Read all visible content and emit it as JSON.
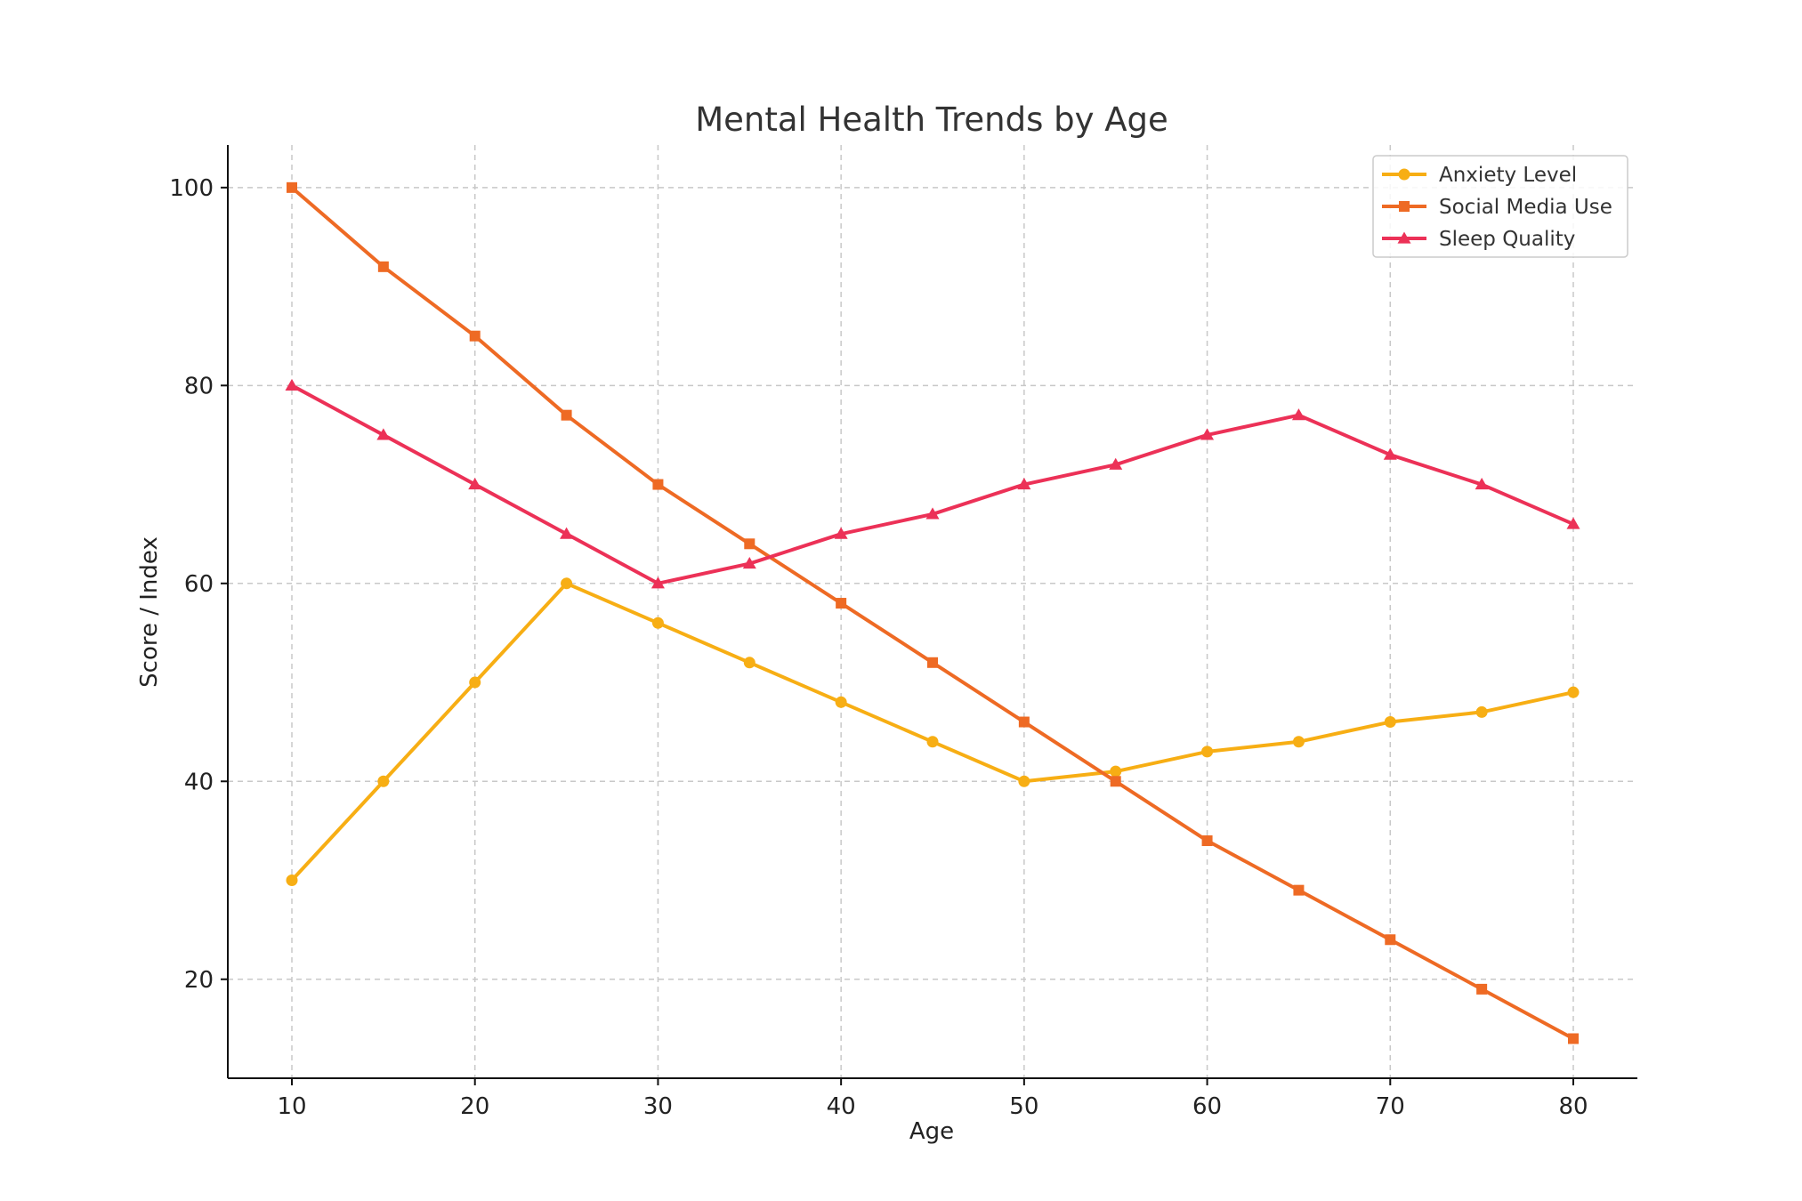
{
  "chart_data": {
    "type": "line",
    "title": "Mental Health Trends by Age",
    "xlabel": "Age",
    "ylabel": "Score / Index",
    "x": [
      10,
      15,
      20,
      25,
      30,
      35,
      40,
      45,
      50,
      55,
      60,
      65,
      70,
      75,
      80
    ],
    "xlim": [
      6.5,
      83.5
    ],
    "ylim": [
      10,
      104.3
    ],
    "xticks": [
      10,
      20,
      30,
      40,
      50,
      60,
      70,
      80
    ],
    "yticks": [
      20,
      40,
      60,
      80,
      100
    ],
    "grid": true,
    "legend_position": "top-right",
    "series": [
      {
        "name": "Anxiety Level",
        "color": "#F7AE14",
        "marker": "circle",
        "values": [
          30,
          40,
          50,
          60,
          56,
          52,
          48,
          44,
          40,
          41,
          43,
          44,
          46,
          47,
          49
        ]
      },
      {
        "name": "Social Media Use",
        "color": "#EE6A24",
        "marker": "square",
        "values": [
          100,
          92,
          85,
          77,
          70,
          64,
          58,
          52,
          46,
          40,
          34,
          29,
          24,
          19,
          14
        ]
      },
      {
        "name": "Sleep Quality",
        "color": "#EC3157",
        "marker": "triangle",
        "values": [
          80,
          75,
          70,
          65,
          60,
          62,
          65,
          67,
          70,
          72,
          75,
          77,
          73,
          70,
          66
        ]
      }
    ]
  }
}
